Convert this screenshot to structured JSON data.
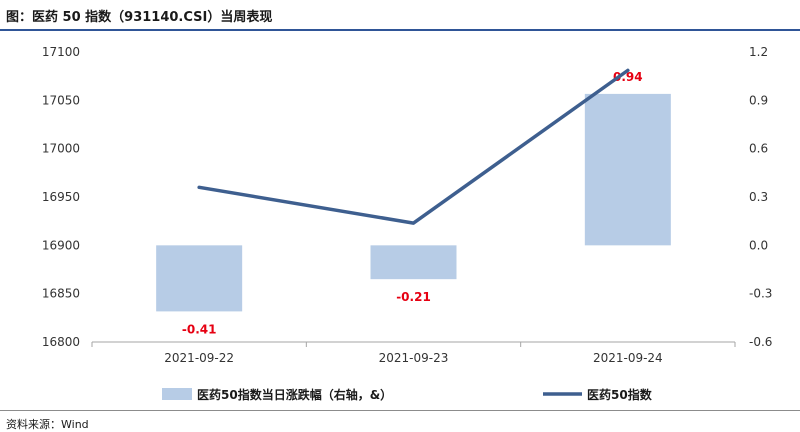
{
  "header": {
    "title": "图：医药 50 指数（931140.CSI）当周表现"
  },
  "footer": {
    "source": "资料来源：Wind"
  },
  "colors": {
    "bar": "#b7cce6",
    "line": "#3e5f8f",
    "label": "#e60012",
    "axis": "#a6a6a6"
  },
  "chart_data": {
    "type": "bar+line",
    "categories": [
      "2021-09-22",
      "2021-09-23",
      "2021-09-24"
    ],
    "series": [
      {
        "name": "医药50指数当日涨跌幅（右轴，&）",
        "type": "bar",
        "axis": "right",
        "values": [
          -0.41,
          -0.21,
          0.94
        ],
        "labels": [
          "-0.41",
          "-0.21",
          "0.94"
        ]
      },
      {
        "name": "医药50指数",
        "type": "line",
        "axis": "left",
        "values": [
          16960,
          16923,
          17081
        ]
      }
    ],
    "left_axis": {
      "min": 16800,
      "max": 17100,
      "ticks": [
        17100,
        17050,
        17000,
        16950,
        16900,
        16850,
        16800
      ]
    },
    "right_axis": {
      "min": -0.6,
      "max": 1.2,
      "ticks": [
        "1.2",
        "0.9",
        "0.6",
        "0.3",
        "0.0",
        "-0.3",
        "-0.6"
      ],
      "tick_values": [
        1.2,
        0.9,
        0.6,
        0.3,
        0.0,
        -0.3,
        -0.6
      ]
    },
    "legend": {
      "placement": "bottom"
    }
  }
}
